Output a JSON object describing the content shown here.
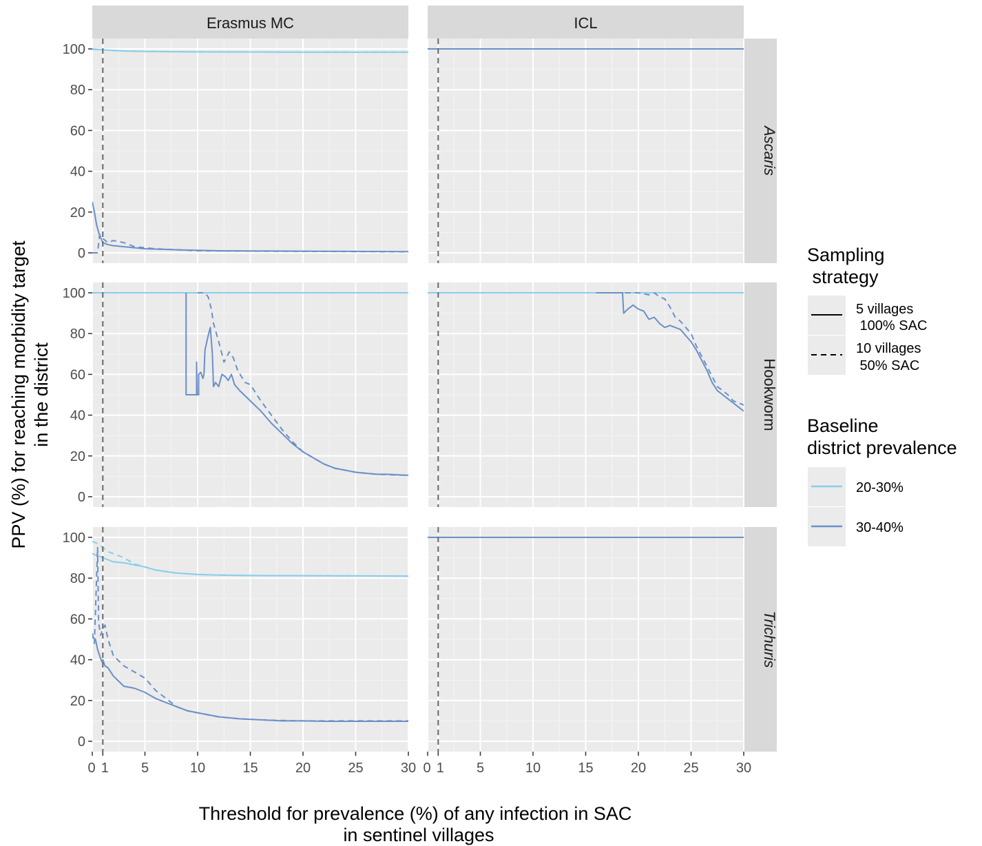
{
  "chart_data": {
    "type": "line",
    "facet_columns": [
      "Erasmus MC",
      "ICL"
    ],
    "facet_rows": [
      "Ascaris",
      "Hookworm",
      "Trichuris"
    ],
    "xlabel": [
      "Threshold for prevalence (%) of any infection in SAC",
      "in sentinel villages"
    ],
    "ylabel": [
      "PPV (%) for reaching morbidity target",
      "in the district"
    ],
    "xlim": [
      0,
      30
    ],
    "ylim": [
      0,
      100
    ],
    "x_ticks": [
      0,
      1,
      5,
      10,
      15,
      20,
      25,
      30
    ],
    "y_ticks": [
      0,
      20,
      40,
      60,
      80,
      100
    ],
    "reference_line_x": 1,
    "grid": true,
    "legend_position": "right",
    "legend": {
      "strategy_title": [
        "Sampling",
        " strategy"
      ],
      "strategy_entries": [
        {
          "label": [
            "5 villages",
            " 100% SAC"
          ],
          "linetype": "solid"
        },
        {
          "label": [
            "10 villages",
            " 50% SAC"
          ],
          "linetype": "dashed"
        }
      ],
      "prevalence_title": [
        "Baseline",
        "district prevalence"
      ],
      "prevalence_entries": [
        {
          "label": "20-30%",
          "color": "#87CEEB"
        },
        {
          "label": "30-40%",
          "color": "#6A8FC8"
        }
      ]
    },
    "colors": {
      "20-30%": "#87CEEB",
      "30-40%": "#6A8FC8"
    },
    "panels": [
      {
        "column": "Erasmus MC",
        "row": "Ascaris",
        "series": [
          {
            "prevalence": "20-30%",
            "strategy": "5 villages 100% SAC",
            "x": [
              0,
              1,
              2,
              3,
              5,
              8,
              12,
              20,
              30
            ],
            "y": [
              100,
              99.6,
              99.3,
              99,
              98.8,
              98.6,
              98.5,
              98.4,
              98.4
            ]
          },
          {
            "prevalence": "20-30%",
            "strategy": "10 villages 50% SAC",
            "x": [
              0,
              1,
              2,
              3,
              5,
              8,
              12,
              20,
              30
            ],
            "y": [
              99.8,
              99.5,
              99.2,
              99,
              98.8,
              98.6,
              98.5,
              98.4,
              98.4
            ]
          },
          {
            "prevalence": "30-40%",
            "strategy": "5 villages 100% SAC",
            "x": [
              0,
              0.2,
              0.4,
              0.6,
              0.8,
              1,
              1.5,
              2,
              3,
              5,
              8,
              12,
              20,
              30
            ],
            "y": [
              25,
              20,
              14,
              10,
              7.5,
              5,
              4,
              3.5,
              3,
              2,
              1.5,
              1,
              0.8,
              0.6
            ]
          },
          {
            "prevalence": "30-40%",
            "strategy": "10 villages 50% SAC",
            "x": [
              0,
              0.5,
              0.7,
              1,
              1.5,
              2,
              3,
              4,
              6,
              10,
              20,
              30
            ],
            "y": [
              0,
              0,
              9,
              7,
              5,
              6,
              5,
              3,
              2,
              1,
              0.7,
              0.5
            ]
          }
        ]
      },
      {
        "column": "ICL",
        "row": "Ascaris",
        "series": [
          {
            "prevalence": "30-40%",
            "strategy": "5 villages 100% SAC",
            "x": [
              0,
              30
            ],
            "y": [
              100,
              100
            ]
          }
        ]
      },
      {
        "column": "Erasmus MC",
        "row": "Hookworm",
        "series": [
          {
            "prevalence": "20-30%",
            "strategy": "5 villages 100% SAC",
            "x": [
              0,
              30
            ],
            "y": [
              100,
              100
            ]
          },
          {
            "prevalence": "20-30%",
            "strategy": "10 villages 50% SAC",
            "x": [
              0,
              30
            ],
            "y": [
              100,
              100
            ]
          },
          {
            "prevalence": "30-40%",
            "strategy": "5 villages 100% SAC",
            "x": [
              8.9,
              8.9,
              8.95,
              8.95,
              9.9,
              9.9,
              9.95,
              10,
              10.1,
              10.1,
              10.3,
              10.5,
              10.6,
              10.7,
              11,
              11.2,
              11.4,
              11.5,
              11.7,
              12,
              12.3,
              12.6,
              12.9,
              13.2,
              13.5,
              14,
              15,
              16,
              17,
              18,
              19,
              20,
              21,
              22,
              23,
              24,
              25,
              26,
              27,
              28,
              29,
              30
            ],
            "y": [
              100,
              50,
              50,
              50,
              50,
              66,
              50,
              50,
              50,
              60,
              61,
              58,
              60,
              72,
              79,
              83,
              70,
              54,
              56,
              54,
              60,
              59,
              57,
              60,
              55,
              52,
              47,
              42,
              36,
              31,
              26,
              22,
              19,
              16,
              14,
              13,
              12,
              11.5,
              11,
              11,
              10.7,
              10.5
            ]
          },
          {
            "prevalence": "30-40%",
            "strategy": "10 villages 50% SAC",
            "x": [
              10,
              10.6,
              10.7,
              11,
              11.3,
              11.5,
              12,
              12.5,
              13,
              13.4,
              13.8,
              14.5,
              15,
              16,
              17,
              18,
              19,
              20,
              21,
              22,
              23,
              24,
              25,
              26,
              27,
              28,
              29,
              30
            ],
            "y": [
              100,
              100,
              100,
              98,
              92,
              85,
              76,
              66,
              71,
              68,
              62,
              56,
              55,
              47,
              40,
              33,
              27,
              22,
              19,
              16,
              14,
              13,
              12,
              11.5,
              11,
              10.8,
              10.6,
              10.5
            ]
          }
        ]
      },
      {
        "column": "ICL",
        "row": "Hookworm",
        "series": [
          {
            "prevalence": "20-30%",
            "strategy": "5 villages 100% SAC",
            "x": [
              0,
              30
            ],
            "y": [
              100,
              100
            ]
          },
          {
            "prevalence": "30-40%",
            "strategy": "5 villages 100% SAC",
            "x": [
              16,
              18.5,
              18.6,
              19,
              19.5,
              20,
              20.5,
              21,
              21.5,
              22,
              22.5,
              23,
              23.5,
              24,
              24.5,
              25,
              25.5,
              26,
              26.5,
              27,
              27.5,
              28,
              28.5,
              29,
              29.5,
              30
            ],
            "y": [
              100,
              100,
              90,
              92,
              94,
              92,
              91,
              87,
              88,
              85,
              83,
              84,
              83,
              82,
              79,
              76,
              72,
              67,
              62,
              56,
              52,
              50,
              48,
              46,
              44,
              42
            ]
          },
          {
            "prevalence": "30-40%",
            "strategy": "10 villages 50% SAC",
            "x": [
              16,
              19,
              20,
              21,
              21.5,
              22,
              22.5,
              23,
              23.5,
              24,
              24.5,
              25,
              25.5,
              26,
              26.5,
              27,
              27.5,
              28,
              28.5,
              29,
              29.5,
              30
            ],
            "y": [
              100,
              100,
              100,
              99,
              100,
              98,
              97,
              93,
              88,
              86,
              83,
              80,
              74,
              69,
              64,
              59,
              54,
              52,
              50,
              47,
              46,
              45
            ]
          }
        ]
      },
      {
        "column": "Erasmus MC",
        "row": "Trichuris",
        "series": [
          {
            "prevalence": "20-30%",
            "strategy": "5 villages 100% SAC",
            "x": [
              0,
              0.5,
              1,
              1.5,
              2,
              3,
              4,
              5,
              6,
              8,
              10,
              12,
              15,
              20,
              25,
              30
            ],
            "y": [
              92,
              91,
              90,
              89,
              88,
              87.5,
              86.5,
              85.5,
              84,
              82.5,
              81.8,
              81.5,
              81.3,
              81.2,
              81.1,
              81
            ]
          },
          {
            "prevalence": "20-30%",
            "strategy": "10 villages 50% SAC",
            "x": [
              0,
              0.5,
              1,
              1.5,
              2,
              3,
              4,
              5,
              6,
              8,
              10,
              12,
              15,
              20,
              25,
              30
            ],
            "y": [
              98,
              97,
              95,
              93,
              92,
              90,
              87,
              85.5,
              84,
              82.5,
              81.8,
              81.5,
              81.3,
              81.2,
              81.1,
              81
            ]
          },
          {
            "prevalence": "30-40%",
            "strategy": "5 villages 100% SAC",
            "x": [
              0,
              0.3,
              0.5,
              0.7,
              0.9,
              1,
              1.2,
              1.5,
              2,
              3,
              4,
              5,
              6,
              7,
              8,
              9,
              10,
              12,
              14,
              16,
              18,
              20,
              22,
              25,
              30
            ],
            "y": [
              51,
              50,
              45,
              42,
              39,
              40,
              37,
              36,
              32,
              27,
              26,
              24,
              21,
              19,
              17,
              15,
              14,
              12,
              11,
              10.5,
              10,
              10,
              9.8,
              9.8,
              9.8
            ]
          },
          {
            "prevalence": "30-40%",
            "strategy": "10 villages 50% SAC",
            "x": [
              0,
              0.2,
              0.5,
              0.6,
              0.8,
              1,
              1.2,
              1.5,
              2,
              3,
              4,
              5,
              6,
              7,
              8,
              9,
              10,
              12,
              14,
              16,
              18,
              20,
              22,
              25,
              30
            ],
            "y": [
              53,
              48,
              95,
              58,
              52,
              55,
              57,
              50,
              42,
              37,
              34,
              31,
              25,
              21,
              17,
              15,
              14,
              12,
              11,
              10.5,
              10.2,
              10,
              10,
              10,
              10
            ]
          }
        ]
      },
      {
        "column": "ICL",
        "row": "Trichuris",
        "series": [
          {
            "prevalence": "30-40%",
            "strategy": "5 villages 100% SAC",
            "x": [
              0,
              30
            ],
            "y": [
              100,
              100
            ]
          }
        ]
      }
    ]
  }
}
